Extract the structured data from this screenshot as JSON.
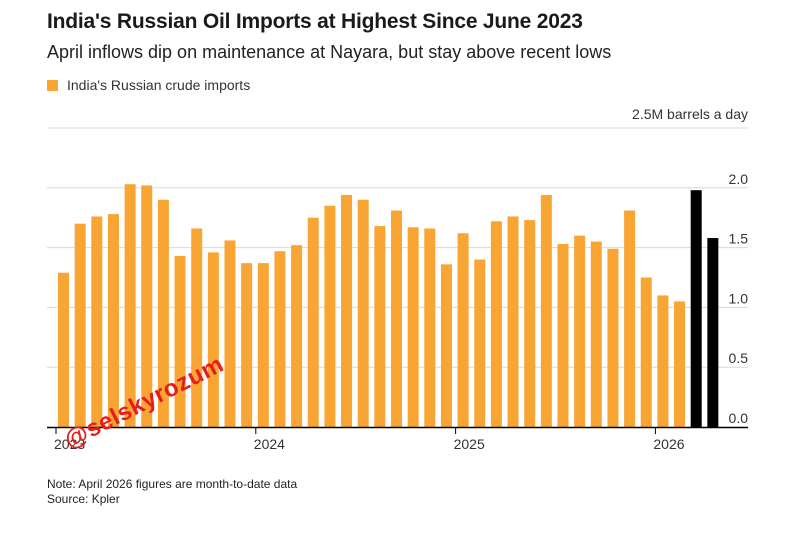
{
  "title": "India's Russian Oil Imports at Highest Since June 2023",
  "subtitle": "April inflows dip on maintenance at Nayara, but stay above recent lows",
  "notes": {
    "note": "Note: April 2026 figures are month-to-date data",
    "source": "Source: Kpler"
  },
  "watermark": "@selskyrozum",
  "colors": {
    "series": "#f8a533",
    "highlight": "#000000",
    "grid": "#d9d9d9",
    "axis": "#000000"
  },
  "chart_data": {
    "type": "bar",
    "unit_label": "2.5M barrels a day",
    "y_ticks": [
      "2.0",
      "1.5",
      "1.0",
      "0.5",
      "0.0"
    ],
    "ylim": [
      0,
      2.5
    ],
    "x_tick_labels": [
      "2023",
      "2024",
      "2025",
      "2026"
    ],
    "legend": [
      "India's Russian crude imports"
    ],
    "legend_position": "top-left",
    "grid": true,
    "series": [
      {
        "name": "India's Russian crude imports",
        "x": [
          "2023-01",
          "2023-02",
          "2023-03",
          "2023-04",
          "2023-05",
          "2023-06",
          "2023-07",
          "2023-08",
          "2023-09",
          "2023-10",
          "2023-11",
          "2023-12",
          "2024-01",
          "2024-02",
          "2024-03",
          "2024-04",
          "2024-05",
          "2024-06",
          "2024-07",
          "2024-08",
          "2024-09",
          "2024-10",
          "2024-11",
          "2024-12",
          "2025-01",
          "2025-02",
          "2025-03",
          "2025-04",
          "2025-05",
          "2025-06",
          "2025-07",
          "2025-08",
          "2025-09",
          "2025-10",
          "2025-11",
          "2025-12",
          "2026-01",
          "2026-02",
          "2026-03",
          "2026-04"
        ],
        "values": [
          1.29,
          1.7,
          1.76,
          1.78,
          2.03,
          2.02,
          1.9,
          1.43,
          1.66,
          1.46,
          1.56,
          1.37,
          1.37,
          1.47,
          1.52,
          1.75,
          1.85,
          1.94,
          1.9,
          1.68,
          1.81,
          1.67,
          1.66,
          1.36,
          1.62,
          1.4,
          1.72,
          1.76,
          1.73,
          1.94,
          1.53,
          1.6,
          1.55,
          1.49,
          1.81,
          1.25,
          1.1,
          1.05,
          1.98,
          1.58
        ],
        "highlighted": [
          "2026-03",
          "2026-04"
        ]
      }
    ]
  }
}
